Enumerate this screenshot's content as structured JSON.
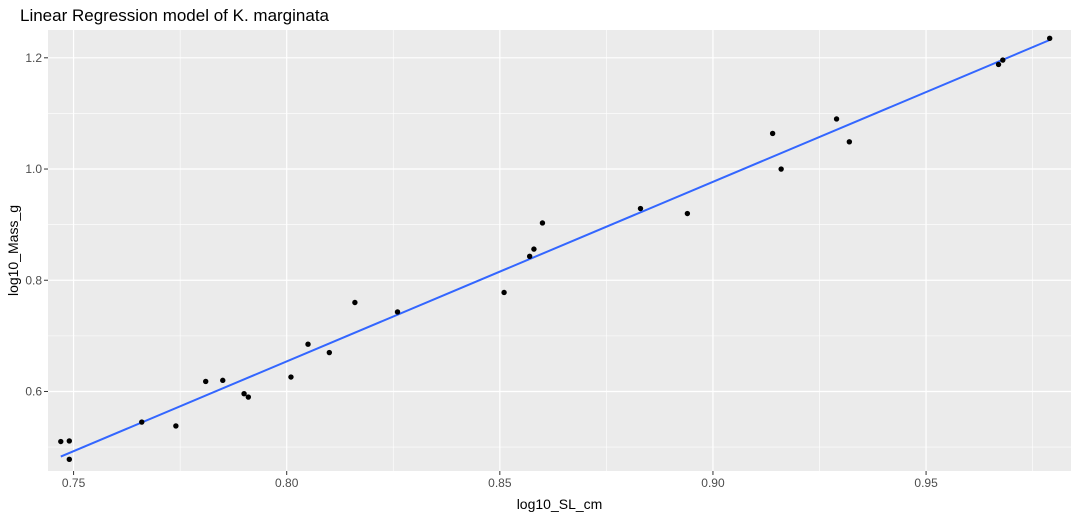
{
  "chart_data": {
    "type": "scatter",
    "title": "Linear Regression model of K. marginata",
    "xlabel": "log10_SL_cm",
    "ylabel": "log10_Mass_g",
    "xlim": [
      0.744,
      0.984
    ],
    "ylim": [
      0.457,
      1.25
    ],
    "x_ticks": [
      0.75,
      0.8,
      0.85,
      0.9,
      0.95
    ],
    "x_tick_labels": [
      "0.75",
      "0.80",
      "0.85",
      "0.90",
      "0.95"
    ],
    "y_ticks": [
      0.6,
      0.8,
      1.0,
      1.2
    ],
    "y_tick_labels": [
      "0.6",
      "0.8",
      "1.0",
      "1.2"
    ],
    "grid": true,
    "legend": "none",
    "colors": {
      "panel": "#ebebeb",
      "grid_major": "#ffffff",
      "points": "#000000",
      "fit_line": "#3366ff"
    },
    "points": [
      {
        "x": 0.747,
        "y": 0.51
      },
      {
        "x": 0.749,
        "y": 0.511
      },
      {
        "x": 0.749,
        "y": 0.478
      },
      {
        "x": 0.766,
        "y": 0.545
      },
      {
        "x": 0.774,
        "y": 0.538
      },
      {
        "x": 0.781,
        "y": 0.618
      },
      {
        "x": 0.785,
        "y": 0.62
      },
      {
        "x": 0.79,
        "y": 0.596
      },
      {
        "x": 0.791,
        "y": 0.59
      },
      {
        "x": 0.801,
        "y": 0.626
      },
      {
        "x": 0.805,
        "y": 0.685
      },
      {
        "x": 0.81,
        "y": 0.67
      },
      {
        "x": 0.816,
        "y": 0.76
      },
      {
        "x": 0.826,
        "y": 0.743
      },
      {
        "x": 0.851,
        "y": 0.778
      },
      {
        "x": 0.857,
        "y": 0.843
      },
      {
        "x": 0.858,
        "y": 0.856
      },
      {
        "x": 0.86,
        "y": 0.903
      },
      {
        "x": 0.883,
        "y": 0.929
      },
      {
        "x": 0.894,
        "y": 0.92
      },
      {
        "x": 0.914,
        "y": 1.064
      },
      {
        "x": 0.916,
        "y": 1.0
      },
      {
        "x": 0.929,
        "y": 1.09
      },
      {
        "x": 0.932,
        "y": 1.049
      },
      {
        "x": 0.967,
        "y": 1.188
      },
      {
        "x": 0.968,
        "y": 1.196
      },
      {
        "x": 0.979,
        "y": 1.235
      }
    ],
    "fit_line": {
      "x": [
        0.747,
        0.979
      ],
      "y": [
        0.483,
        1.232
      ]
    }
  }
}
